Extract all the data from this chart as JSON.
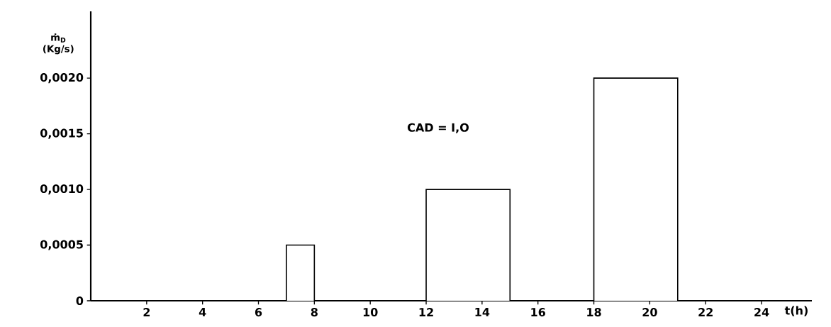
{
  "chart_data": {
    "type": "histogram",
    "ylabel": "ṁ$_{D}$ (Kg/s)",
    "xlabel": "t(h)",
    "annotations": [
      "CAD = I,O"
    ],
    "bins": [
      7,
      8,
      12,
      15,
      18,
      21
    ],
    "values": [
      0.0005,
      0,
      0.001,
      0,
      0.002
    ],
    "color": "#000000",
    "xlim": [
      0,
      25.8
    ],
    "ylim": [
      0,
      0.0026
    ],
    "xticks": [
      2,
      4,
      6,
      8,
      10,
      12,
      14,
      16,
      18,
      20,
      22,
      24
    ],
    "yticks": [
      0,
      {
        "value": 0.0005,
        "label": "0,0005"
      },
      {
        "value": 0.001,
        "label": "0,0010"
      },
      {
        "value": 0.0015,
        "label": "0,0015"
      },
      {
        "value": 0.002,
        "label": "0,0020"
      }
    ],
    "grid": false
  }
}
